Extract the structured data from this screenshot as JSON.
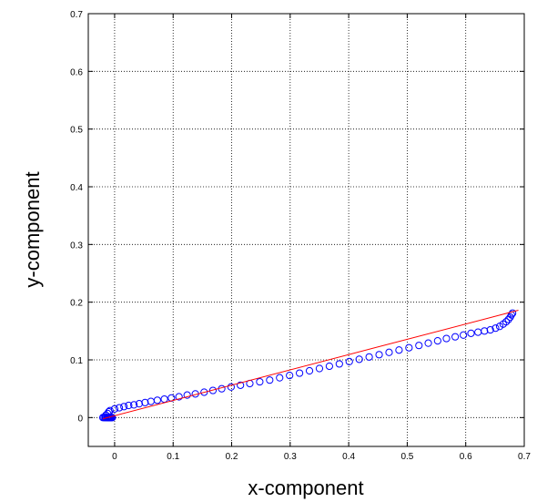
{
  "chart_data": {
    "type": "scatter",
    "xlabel": "x-component",
    "ylabel": "y-component",
    "xlim": [
      -0.045,
      0.7
    ],
    "ylim": [
      -0.05,
      0.7
    ],
    "xticks": [
      0,
      0.1,
      0.2,
      0.3,
      0.4,
      0.5,
      0.6,
      0.7
    ],
    "yticks": [
      0,
      0.1,
      0.2,
      0.3,
      0.4,
      0.5,
      0.6,
      0.7
    ],
    "xtick_labels": [
      "0",
      "0.1",
      "0.2",
      "0.3",
      "0.4",
      "0.5",
      "0.6",
      "0.7"
    ],
    "ytick_labels": [
      "0",
      "0.1",
      "0.2",
      "0.3",
      "0.4",
      "0.5",
      "0.6",
      "0.7"
    ],
    "grid": true,
    "series": [
      {
        "kind": "scatter",
        "marker": "circle-open",
        "color": "#0000ff",
        "x": [
          -0.02,
          -0.018,
          -0.016,
          -0.015,
          -0.013,
          -0.012,
          -0.011,
          -0.01,
          -0.009,
          -0.008,
          -0.007,
          -0.006,
          -0.005,
          -0.004,
          -0.015,
          -0.012,
          -0.01,
          -0.008,
          0.0,
          0.008,
          0.016,
          0.024,
          0.033,
          0.042,
          0.052,
          0.062,
          0.073,
          0.085,
          0.097,
          0.11,
          0.124,
          0.138,
          0.153,
          0.168,
          0.183,
          0.199,
          0.215,
          0.231,
          0.248,
          0.265,
          0.282,
          0.299,
          0.316,
          0.333,
          0.35,
          0.367,
          0.384,
          0.401,
          0.418,
          0.435,
          0.452,
          0.469,
          0.486,
          0.503,
          0.52,
          0.536,
          0.552,
          0.567,
          0.582,
          0.596,
          0.609,
          0.621,
          0.632,
          0.642,
          0.651,
          0.658,
          0.664,
          0.669,
          0.673,
          0.676,
          0.678,
          0.68
        ],
        "y": [
          0.0,
          0.0,
          0.0,
          0.0,
          0.0,
          0.0,
          0.0,
          0.0,
          0.0,
          0.0,
          0.0,
          0.0,
          0.0,
          0.0,
          0.004,
          0.007,
          0.01,
          0.012,
          0.015,
          0.017,
          0.019,
          0.021,
          0.022,
          0.024,
          0.026,
          0.028,
          0.03,
          0.032,
          0.034,
          0.036,
          0.039,
          0.041,
          0.044,
          0.047,
          0.05,
          0.053,
          0.056,
          0.059,
          0.062,
          0.065,
          0.069,
          0.073,
          0.077,
          0.081,
          0.085,
          0.089,
          0.093,
          0.097,
          0.101,
          0.105,
          0.109,
          0.113,
          0.117,
          0.121,
          0.125,
          0.129,
          0.133,
          0.137,
          0.14,
          0.143,
          0.146,
          0.148,
          0.15,
          0.152,
          0.155,
          0.158,
          0.162,
          0.166,
          0.17,
          0.174,
          0.178,
          0.181
        ]
      },
      {
        "kind": "line",
        "color": "#ff0000",
        "x": [
          -0.02,
          0.69
        ],
        "y": [
          -0.002,
          0.186
        ]
      }
    ]
  }
}
